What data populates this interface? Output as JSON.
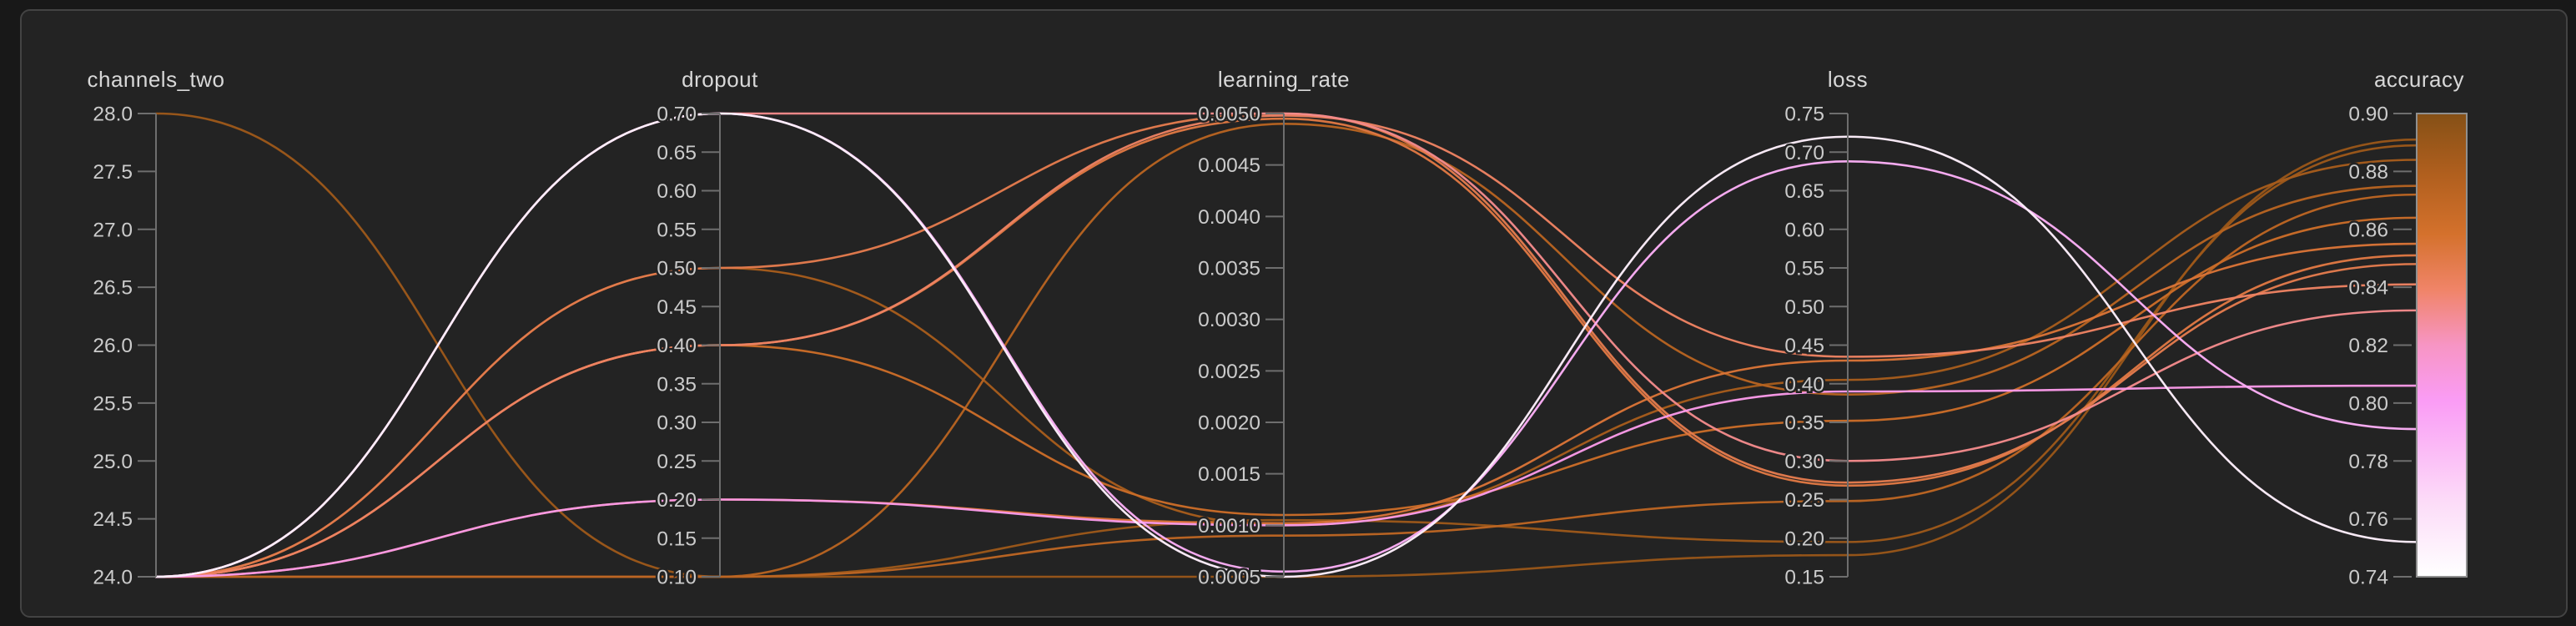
{
  "panel": {
    "kind": "parallel-coordinates-sweep-panel"
  },
  "colors": {
    "page_background": "#181818",
    "panel_background": "#232323",
    "panel_border": "#434343",
    "axis_line": "#6e6e6e",
    "tick_mark": "#6e6e6e",
    "tick_label": "#cbcbcb",
    "axis_title": "#d8d8d8",
    "colorbar_border": "#8f8f8f"
  },
  "chart_data": {
    "type": "parallel-coordinates",
    "legend_position": "right-colorbar",
    "grid": false,
    "color_axis": "accuracy",
    "axes": [
      {
        "key": "channels_two",
        "title": "channels_two",
        "min": 24.0,
        "max": 28.0,
        "tick_labels": [
          "24.0",
          "24.5",
          "25.0",
          "25.5",
          "26.0",
          "26.5",
          "27.0",
          "27.5",
          "28.0"
        ]
      },
      {
        "key": "dropout",
        "title": "dropout",
        "min": 0.1,
        "max": 0.7,
        "tick_labels": [
          "0.10",
          "0.15",
          "0.20",
          "0.25",
          "0.30",
          "0.35",
          "0.40",
          "0.45",
          "0.50",
          "0.55",
          "0.60",
          "0.65",
          "0.70"
        ]
      },
      {
        "key": "learning_rate",
        "title": "learning_rate",
        "min": 0.0005,
        "max": 0.005,
        "tick_labels": [
          "0.0005",
          "0.0010",
          "0.0015",
          "0.0020",
          "0.0025",
          "0.0030",
          "0.0035",
          "0.0040",
          "0.0045",
          "0.0050"
        ]
      },
      {
        "key": "loss",
        "title": "loss",
        "min": 0.15,
        "max": 0.75,
        "tick_labels": [
          "0.15",
          "0.20",
          "0.25",
          "0.30",
          "0.35",
          "0.40",
          "0.45",
          "0.50",
          "0.55",
          "0.60",
          "0.65",
          "0.70",
          "0.75"
        ]
      },
      {
        "key": "accuracy",
        "title": "accuracy",
        "min": 0.74,
        "max": 0.9,
        "colorbar": true,
        "tick_labels": [
          "0.74",
          "0.76",
          "0.78",
          "0.80",
          "0.82",
          "0.84",
          "0.86",
          "0.88",
          "0.90"
        ]
      }
    ],
    "colormap_stops": [
      [
        0.0,
        "#ffffff"
      ],
      [
        0.16,
        "#fcdcf8"
      ],
      [
        0.38,
        "#fa9cf5"
      ],
      [
        0.5,
        "#f795c4"
      ],
      [
        0.62,
        "#f08468"
      ],
      [
        0.74,
        "#d4712c"
      ],
      [
        0.87,
        "#b05f1e"
      ],
      [
        1.0,
        "#855016"
      ]
    ],
    "runs": [
      {
        "channels_two": 24,
        "dropout": 0.7,
        "learning_rate": 0.0005,
        "loss": 0.72,
        "accuracy": 0.752
      },
      {
        "channels_two": 24,
        "dropout": 0.7,
        "learning_rate": 0.00055,
        "loss": 0.688,
        "accuracy": 0.791
      },
      {
        "channels_two": 24,
        "dropout": 0.7,
        "learning_rate": 0.005,
        "loss": 0.3,
        "accuracy": 0.832
      },
      {
        "channels_two": 24,
        "dropout": 0.5,
        "learning_rate": 0.005,
        "loss": 0.272,
        "accuracy": 0.848
      },
      {
        "channels_two": 24,
        "dropout": 0.5,
        "learning_rate": 0.001,
        "loss": 0.405,
        "accuracy": 0.884
      },
      {
        "channels_two": 24,
        "dropout": 0.4,
        "learning_rate": 0.00495,
        "loss": 0.268,
        "accuracy": 0.851
      },
      {
        "channels_two": 24,
        "dropout": 0.4,
        "learning_rate": 0.0011,
        "loss": 0.352,
        "accuracy": 0.864
      },
      {
        "channels_two": 24,
        "dropout": 0.4,
        "learning_rate": 0.00498,
        "loss": 0.435,
        "accuracy": 0.841
      },
      {
        "channels_two": 24,
        "dropout": 0.2,
        "learning_rate": 0.001,
        "loss": 0.39,
        "accuracy": 0.806
      },
      {
        "channels_two": 24,
        "dropout": 0.2,
        "learning_rate": 0.00102,
        "loss": 0.43,
        "accuracy": 0.855
      },
      {
        "channels_two": 28,
        "dropout": 0.1,
        "learning_rate": 0.00105,
        "loss": 0.195,
        "accuracy": 0.889
      },
      {
        "channels_two": 24,
        "dropout": 0.1,
        "learning_rate": 0.0005,
        "loss": 0.178,
        "accuracy": 0.891
      },
      {
        "channels_two": 24,
        "dropout": 0.1,
        "learning_rate": 0.0049,
        "loss": 0.386,
        "accuracy": 0.875
      },
      {
        "channels_two": 24,
        "dropout": 0.1,
        "learning_rate": 0.0009,
        "loss": 0.248,
        "accuracy": 0.872
      }
    ]
  }
}
